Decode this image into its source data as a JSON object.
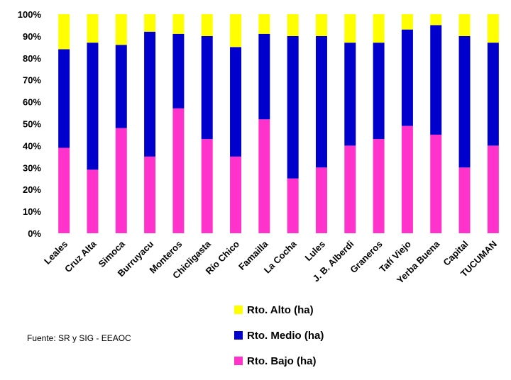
{
  "chart_data": {
    "type": "bar",
    "stacked": true,
    "categories": [
      "Leales",
      "Cruz Alta",
      "Simoca",
      "Burruyacu",
      "Monteros",
      "Chicligasta",
      "Río Chico",
      "Famailla",
      "La Cocha",
      "Lules",
      "J. B. Alberdi",
      "Graneros",
      "Tafí Viejo",
      "Yerba Buena",
      "Capital",
      "TUCUMAN"
    ],
    "series": [
      {
        "name": "Rto. Bajo (ha)",
        "color": "#ff33cc",
        "values": [
          39,
          29,
          48,
          35,
          57,
          43,
          35,
          52,
          25,
          30,
          40,
          43,
          49,
          45,
          30,
          40
        ]
      },
      {
        "name": "Rto. Medio (ha)",
        "color": "#0000cc",
        "values": [
          45,
          58,
          38,
          57,
          34,
          47,
          50,
          39,
          65,
          60,
          47,
          44,
          44,
          50,
          60,
          47
        ]
      },
      {
        "name": "Rto. Alto (ha)",
        "color": "#ffff00",
        "values": [
          16,
          13,
          14,
          8,
          9,
          10,
          15,
          9,
          10,
          10,
          13,
          13,
          7,
          5,
          10,
          13
        ]
      }
    ],
    "yticks": [
      "0%",
      "10%",
      "20%",
      "30%",
      "40%",
      "50%",
      "60%",
      "70%",
      "80%",
      "90%",
      "100%"
    ],
    "ylim": [
      0,
      100
    ],
    "grid": false,
    "legend_position": "bottom"
  },
  "legend": {
    "items": [
      {
        "label": "Rto. Alto (ha)",
        "color": "#ffff00"
      },
      {
        "label": "Rto. Medio (ha)",
        "color": "#0000cc"
      },
      {
        "label": "Rto. Bajo (ha)",
        "color": "#ff33cc"
      }
    ]
  },
  "source": "Fuente: SR y SIG - EEAOC"
}
